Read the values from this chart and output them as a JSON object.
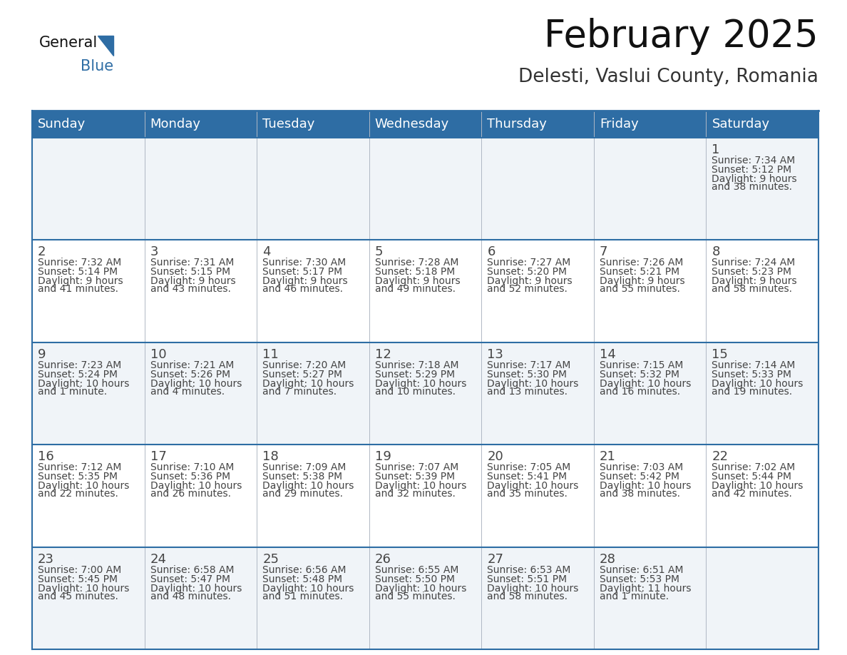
{
  "title": "February 2025",
  "subtitle": "Delesti, Vaslui County, Romania",
  "header_color": "#2e6da4",
  "header_text_color": "#ffffff",
  "background_color": "#ffffff",
  "day_headers": [
    "Sunday",
    "Monday",
    "Tuesday",
    "Wednesday",
    "Thursday",
    "Friday",
    "Saturday"
  ],
  "title_fontsize": 38,
  "subtitle_fontsize": 19,
  "header_fontsize": 13,
  "day_num_fontsize": 13,
  "cell_text_fontsize": 10,
  "line_color": "#2e6da4",
  "text_color": "#444444",
  "days": [
    {
      "date": 1,
      "col": 6,
      "row": 0,
      "sunrise": "7:34 AM",
      "sunset": "5:12 PM",
      "daylight": "9 hours and 38 minutes."
    },
    {
      "date": 2,
      "col": 0,
      "row": 1,
      "sunrise": "7:32 AM",
      "sunset": "5:14 PM",
      "daylight": "9 hours and 41 minutes."
    },
    {
      "date": 3,
      "col": 1,
      "row": 1,
      "sunrise": "7:31 AM",
      "sunset": "5:15 PM",
      "daylight": "9 hours and 43 minutes."
    },
    {
      "date": 4,
      "col": 2,
      "row": 1,
      "sunrise": "7:30 AM",
      "sunset": "5:17 PM",
      "daylight": "9 hours and 46 minutes."
    },
    {
      "date": 5,
      "col": 3,
      "row": 1,
      "sunrise": "7:28 AM",
      "sunset": "5:18 PM",
      "daylight": "9 hours and 49 minutes."
    },
    {
      "date": 6,
      "col": 4,
      "row": 1,
      "sunrise": "7:27 AM",
      "sunset": "5:20 PM",
      "daylight": "9 hours and 52 minutes."
    },
    {
      "date": 7,
      "col": 5,
      "row": 1,
      "sunrise": "7:26 AM",
      "sunset": "5:21 PM",
      "daylight": "9 hours and 55 minutes."
    },
    {
      "date": 8,
      "col": 6,
      "row": 1,
      "sunrise": "7:24 AM",
      "sunset": "5:23 PM",
      "daylight": "9 hours and 58 minutes."
    },
    {
      "date": 9,
      "col": 0,
      "row": 2,
      "sunrise": "7:23 AM",
      "sunset": "5:24 PM",
      "daylight": "10 hours and 1 minute."
    },
    {
      "date": 10,
      "col": 1,
      "row": 2,
      "sunrise": "7:21 AM",
      "sunset": "5:26 PM",
      "daylight": "10 hours and 4 minutes."
    },
    {
      "date": 11,
      "col": 2,
      "row": 2,
      "sunrise": "7:20 AM",
      "sunset": "5:27 PM",
      "daylight": "10 hours and 7 minutes."
    },
    {
      "date": 12,
      "col": 3,
      "row": 2,
      "sunrise": "7:18 AM",
      "sunset": "5:29 PM",
      "daylight": "10 hours and 10 minutes."
    },
    {
      "date": 13,
      "col": 4,
      "row": 2,
      "sunrise": "7:17 AM",
      "sunset": "5:30 PM",
      "daylight": "10 hours and 13 minutes."
    },
    {
      "date": 14,
      "col": 5,
      "row": 2,
      "sunrise": "7:15 AM",
      "sunset": "5:32 PM",
      "daylight": "10 hours and 16 minutes."
    },
    {
      "date": 15,
      "col": 6,
      "row": 2,
      "sunrise": "7:14 AM",
      "sunset": "5:33 PM",
      "daylight": "10 hours and 19 minutes."
    },
    {
      "date": 16,
      "col": 0,
      "row": 3,
      "sunrise": "7:12 AM",
      "sunset": "5:35 PM",
      "daylight": "10 hours and 22 minutes."
    },
    {
      "date": 17,
      "col": 1,
      "row": 3,
      "sunrise": "7:10 AM",
      "sunset": "5:36 PM",
      "daylight": "10 hours and 26 minutes."
    },
    {
      "date": 18,
      "col": 2,
      "row": 3,
      "sunrise": "7:09 AM",
      "sunset": "5:38 PM",
      "daylight": "10 hours and 29 minutes."
    },
    {
      "date": 19,
      "col": 3,
      "row": 3,
      "sunrise": "7:07 AM",
      "sunset": "5:39 PM",
      "daylight": "10 hours and 32 minutes."
    },
    {
      "date": 20,
      "col": 4,
      "row": 3,
      "sunrise": "7:05 AM",
      "sunset": "5:41 PM",
      "daylight": "10 hours and 35 minutes."
    },
    {
      "date": 21,
      "col": 5,
      "row": 3,
      "sunrise": "7:03 AM",
      "sunset": "5:42 PM",
      "daylight": "10 hours and 38 minutes."
    },
    {
      "date": 22,
      "col": 6,
      "row": 3,
      "sunrise": "7:02 AM",
      "sunset": "5:44 PM",
      "daylight": "10 hours and 42 minutes."
    },
    {
      "date": 23,
      "col": 0,
      "row": 4,
      "sunrise": "7:00 AM",
      "sunset": "5:45 PM",
      "daylight": "10 hours and 45 minutes."
    },
    {
      "date": 24,
      "col": 1,
      "row": 4,
      "sunrise": "6:58 AM",
      "sunset": "5:47 PM",
      "daylight": "10 hours and 48 minutes."
    },
    {
      "date": 25,
      "col": 2,
      "row": 4,
      "sunrise": "6:56 AM",
      "sunset": "5:48 PM",
      "daylight": "10 hours and 51 minutes."
    },
    {
      "date": 26,
      "col": 3,
      "row": 4,
      "sunrise": "6:55 AM",
      "sunset": "5:50 PM",
      "daylight": "10 hours and 55 minutes."
    },
    {
      "date": 27,
      "col": 4,
      "row": 4,
      "sunrise": "6:53 AM",
      "sunset": "5:51 PM",
      "daylight": "10 hours and 58 minutes."
    },
    {
      "date": 28,
      "col": 5,
      "row": 4,
      "sunrise": "6:51 AM",
      "sunset": "5:53 PM",
      "daylight": "11 hours and 1 minute."
    }
  ]
}
